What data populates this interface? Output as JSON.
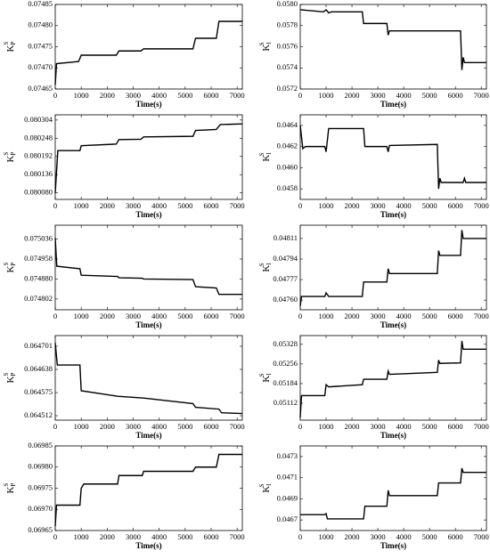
{
  "chart_data": [
    {
      "type": "line",
      "xlabel": "Time(s)",
      "ylabel": "K",
      "ylabel_sup": "S",
      "ylabel_sub": "P",
      "xlim": [
        0,
        7200
      ],
      "xticks": [
        0,
        1000,
        2000,
        3000,
        4000,
        5000,
        6000,
        7000
      ],
      "ylim": [
        0.07465,
        0.07485
      ],
      "yticks": [
        0.07465,
        {
          "value": 0.0747,
          "label": "0.07470"
        },
        0.07475,
        {
          "value": 0.0748,
          "label": "0.07480"
        },
        0.07485
      ],
      "color": "#000000",
      "x": [
        0,
        50,
        900,
        1000,
        2350,
        2450,
        3300,
        3400,
        5300,
        5400,
        6200,
        6300,
        7200
      ],
      "values": [
        0.07466,
        0.07471,
        0.074715,
        0.07473,
        0.07473,
        0.07474,
        0.07474,
        0.074745,
        0.074745,
        0.07477,
        0.07477,
        0.07481,
        0.07481
      ]
    },
    {
      "type": "line",
      "xlabel": "Time(s)",
      "ylabel": "K",
      "ylabel_sup": "S",
      "ylabel_sub": "I",
      "xlim": [
        0,
        7200
      ],
      "xticks": [
        0,
        1000,
        2000,
        3000,
        4000,
        5000,
        6000,
        7000
      ],
      "ylim": [
        0.0572,
        0.058
      ],
      "yticks": [
        0.0572,
        0.0574,
        0.0576,
        0.0578,
        {
          "value": 0.058,
          "label": "0.0580"
        }
      ],
      "color": "#000000",
      "x": [
        0,
        900,
        1000,
        1100,
        1200,
        2400,
        2450,
        3350,
        3400,
        3450,
        6200,
        6250,
        6300,
        6350,
        7200
      ],
      "values": [
        0.05795,
        0.05793,
        0.05795,
        0.05792,
        0.05793,
        0.05793,
        0.05782,
        0.05782,
        0.05771,
        0.05775,
        0.05775,
        0.05738,
        0.0575,
        0.05745,
        0.05745
      ]
    },
    {
      "type": "line",
      "xlabel": "Time(s)",
      "ylabel": "K",
      "ylabel_sup": "S",
      "ylabel_sub": "P",
      "xlim": [
        0,
        7200
      ],
      "xticks": [
        0,
        1000,
        2000,
        3000,
        4000,
        5000,
        6000,
        7000
      ],
      "ylim": [
        0.08006,
        0.08032
      ],
      "yticks": [
        {
          "value": 0.08008,
          "label": "0.080080"
        },
        0.080136,
        0.080192,
        0.080248,
        0.080304
      ],
      "color": "#000000",
      "x": [
        0,
        100,
        950,
        1000,
        2350,
        2450,
        3300,
        3400,
        5300,
        5400,
        6200,
        6350,
        7200
      ],
      "values": [
        0.08008,
        0.08021,
        0.08021,
        0.080225,
        0.08023,
        0.080244,
        0.080245,
        0.080252,
        0.080254,
        0.080272,
        0.080275,
        0.08029,
        0.080292
      ]
    },
    {
      "type": "line",
      "xlabel": "Time(s)",
      "ylabel": "K",
      "ylabel_sup": "S",
      "ylabel_sub": "I",
      "xlim": [
        0,
        7200
      ],
      "xticks": [
        0,
        1000,
        2000,
        3000,
        4000,
        5000,
        6000,
        7000
      ],
      "ylim": [
        0.0457,
        0.0465
      ],
      "yticks": [
        0.0458,
        {
          "value": 0.046,
          "label": "0.0460"
        },
        0.0462,
        0.0464
      ],
      "color": "#000000",
      "x": [
        0,
        100,
        200,
        950,
        1000,
        1100,
        2450,
        2500,
        3350,
        3400,
        3450,
        5300,
        5350,
        5400,
        5450,
        6300,
        6350,
        6400,
        7200
      ],
      "values": [
        0.0464,
        0.04618,
        0.0462,
        0.0462,
        0.04615,
        0.04637,
        0.04637,
        0.0462,
        0.0462,
        0.04615,
        0.04621,
        0.04622,
        0.0458,
        0.0459,
        0.04586,
        0.04586,
        0.0459,
        0.04586,
        0.04586
      ]
    },
    {
      "type": "line",
      "xlabel": "Time(s)",
      "ylabel": "K",
      "ylabel_sup": "S",
      "ylabel_sub": "P",
      "xlim": [
        0,
        7200
      ],
      "xticks": [
        0,
        1000,
        2000,
        3000,
        4000,
        5000,
        6000,
        7000
      ],
      "ylim": [
        0.07476,
        0.07509
      ],
      "yticks": [
        0.074802,
        {
          "value": 0.07488,
          "label": "0.074880"
        },
        0.074958,
        0.075036
      ],
      "color": "#000000",
      "x": [
        0,
        60,
        950,
        1000,
        2400,
        2450,
        3350,
        3400,
        5300,
        5400,
        6200,
        6300,
        7200
      ],
      "values": [
        0.07504,
        0.07493,
        0.07492,
        0.074895,
        0.07489,
        0.074885,
        0.074883,
        0.07488,
        0.074878,
        0.07485,
        0.074845,
        0.07482,
        0.07482
      ]
    },
    {
      "type": "line",
      "xlabel": "Time(s)",
      "ylabel": "K",
      "ylabel_sup": "S",
      "ylabel_sub": "I",
      "xlim": [
        0,
        7200
      ],
      "xticks": [
        0,
        1000,
        2000,
        3000,
        4000,
        5000,
        6000,
        7000
      ],
      "ylim": [
        0.04752,
        0.04822
      ],
      "yticks": [
        {
          "value": 0.0476,
          "label": "0.04760"
        },
        0.04777,
        0.04794,
        0.04811
      ],
      "color": "#000000",
      "x": [
        0,
        50,
        950,
        1000,
        1100,
        2400,
        2450,
        3350,
        3400,
        3450,
        5300,
        5350,
        5400,
        6200,
        6250,
        6300,
        7200
      ],
      "values": [
        0.04755,
        0.04763,
        0.04763,
        0.04766,
        0.04763,
        0.04763,
        0.04775,
        0.04775,
        0.04786,
        0.04782,
        0.04782,
        0.04801,
        0.04797,
        0.04797,
        0.04818,
        0.04811,
        0.04811
      ]
    },
    {
      "type": "line",
      "xlabel": "Time(s)",
      "ylabel": "K",
      "ylabel_sup": "S",
      "ylabel_sub": "P",
      "xlim": [
        0,
        7200
      ],
      "xticks": [
        0,
        1000,
        2000,
        3000,
        4000,
        5000,
        6000,
        7000
      ],
      "ylim": [
        0.0645,
        0.06473
      ],
      "yticks": [
        0.064512,
        0.064575,
        0.064638,
        0.064701
      ],
      "color": "#000000",
      "x": [
        0,
        80,
        950,
        1000,
        2400,
        3400,
        5300,
        5400,
        6300,
        6400,
        7200
      ],
      "values": [
        0.06471,
        0.06465,
        0.06465,
        0.06458,
        0.064565,
        0.06456,
        0.064545,
        0.064535,
        0.06453,
        0.06452,
        0.064518
      ]
    },
    {
      "type": "line",
      "xlabel": "Time(s)",
      "ylabel": "K",
      "ylabel_sup": "S",
      "ylabel_sub": "I",
      "xlim": [
        0,
        7200
      ],
      "xticks": [
        0,
        1000,
        2000,
        3000,
        4000,
        5000,
        6000,
        7000
      ],
      "ylim": [
        0.0505,
        0.0536
      ],
      "yticks": [
        0.05112,
        0.05184,
        0.05256,
        0.05328
      ],
      "color": "#000000",
      "x": [
        0,
        50,
        950,
        1000,
        1100,
        2400,
        2450,
        3350,
        3400,
        3450,
        5300,
        5350,
        5400,
        6200,
        6250,
        6300,
        7200
      ],
      "values": [
        0.0506,
        0.0514,
        0.0514,
        0.0518,
        0.05172,
        0.0518,
        0.052,
        0.052,
        0.0523,
        0.05218,
        0.05225,
        0.0527,
        0.05258,
        0.0526,
        0.0534,
        0.0531,
        0.0531
      ]
    },
    {
      "type": "line",
      "xlabel": "Time(s)",
      "ylabel": "K",
      "ylabel_sup": "S",
      "ylabel_sub": "P",
      "xlim": [
        0,
        7200
      ],
      "xticks": [
        0,
        1000,
        2000,
        3000,
        4000,
        5000,
        6000,
        7000
      ],
      "ylim": [
        0.06965,
        0.06985
      ],
      "yticks": [
        0.06965,
        {
          "value": 0.0697,
          "label": "0.06970"
        },
        0.06975,
        {
          "value": 0.0698,
          "label": "0.06980"
        },
        0.06985
      ],
      "color": "#000000",
      "x": [
        0,
        50,
        950,
        1000,
        1100,
        2400,
        2450,
        3350,
        3400,
        5300,
        5400,
        6200,
        6300,
        7200
      ],
      "values": [
        0.06966,
        0.06971,
        0.06971,
        0.06975,
        0.06976,
        0.06976,
        0.06978,
        0.06978,
        0.06979,
        0.06979,
        0.0698,
        0.0698,
        0.06983,
        0.06983
      ]
    },
    {
      "type": "line",
      "xlabel": "Time(s)",
      "ylabel": "K",
      "ylabel_sup": "S",
      "ylabel_sub": "I",
      "xlim": [
        0,
        7200
      ],
      "xticks": [
        0,
        1000,
        2000,
        3000,
        4000,
        5000,
        6000,
        7000
      ],
      "ylim": [
        0.0466,
        0.0474
      ],
      "yticks": [
        0.0467,
        0.0469,
        0.0471,
        0.0473
      ],
      "color": "#000000",
      "x": [
        0,
        950,
        1000,
        1050,
        2450,
        2500,
        3350,
        3400,
        3450,
        5300,
        5350,
        6200,
        6250,
        6300,
        7200
      ],
      "values": [
        0.04675,
        0.04675,
        0.04676,
        0.04671,
        0.04671,
        0.04683,
        0.04683,
        0.04698,
        0.04693,
        0.04693,
        0.04705,
        0.04705,
        0.04719,
        0.04715,
        0.04715
      ]
    }
  ]
}
